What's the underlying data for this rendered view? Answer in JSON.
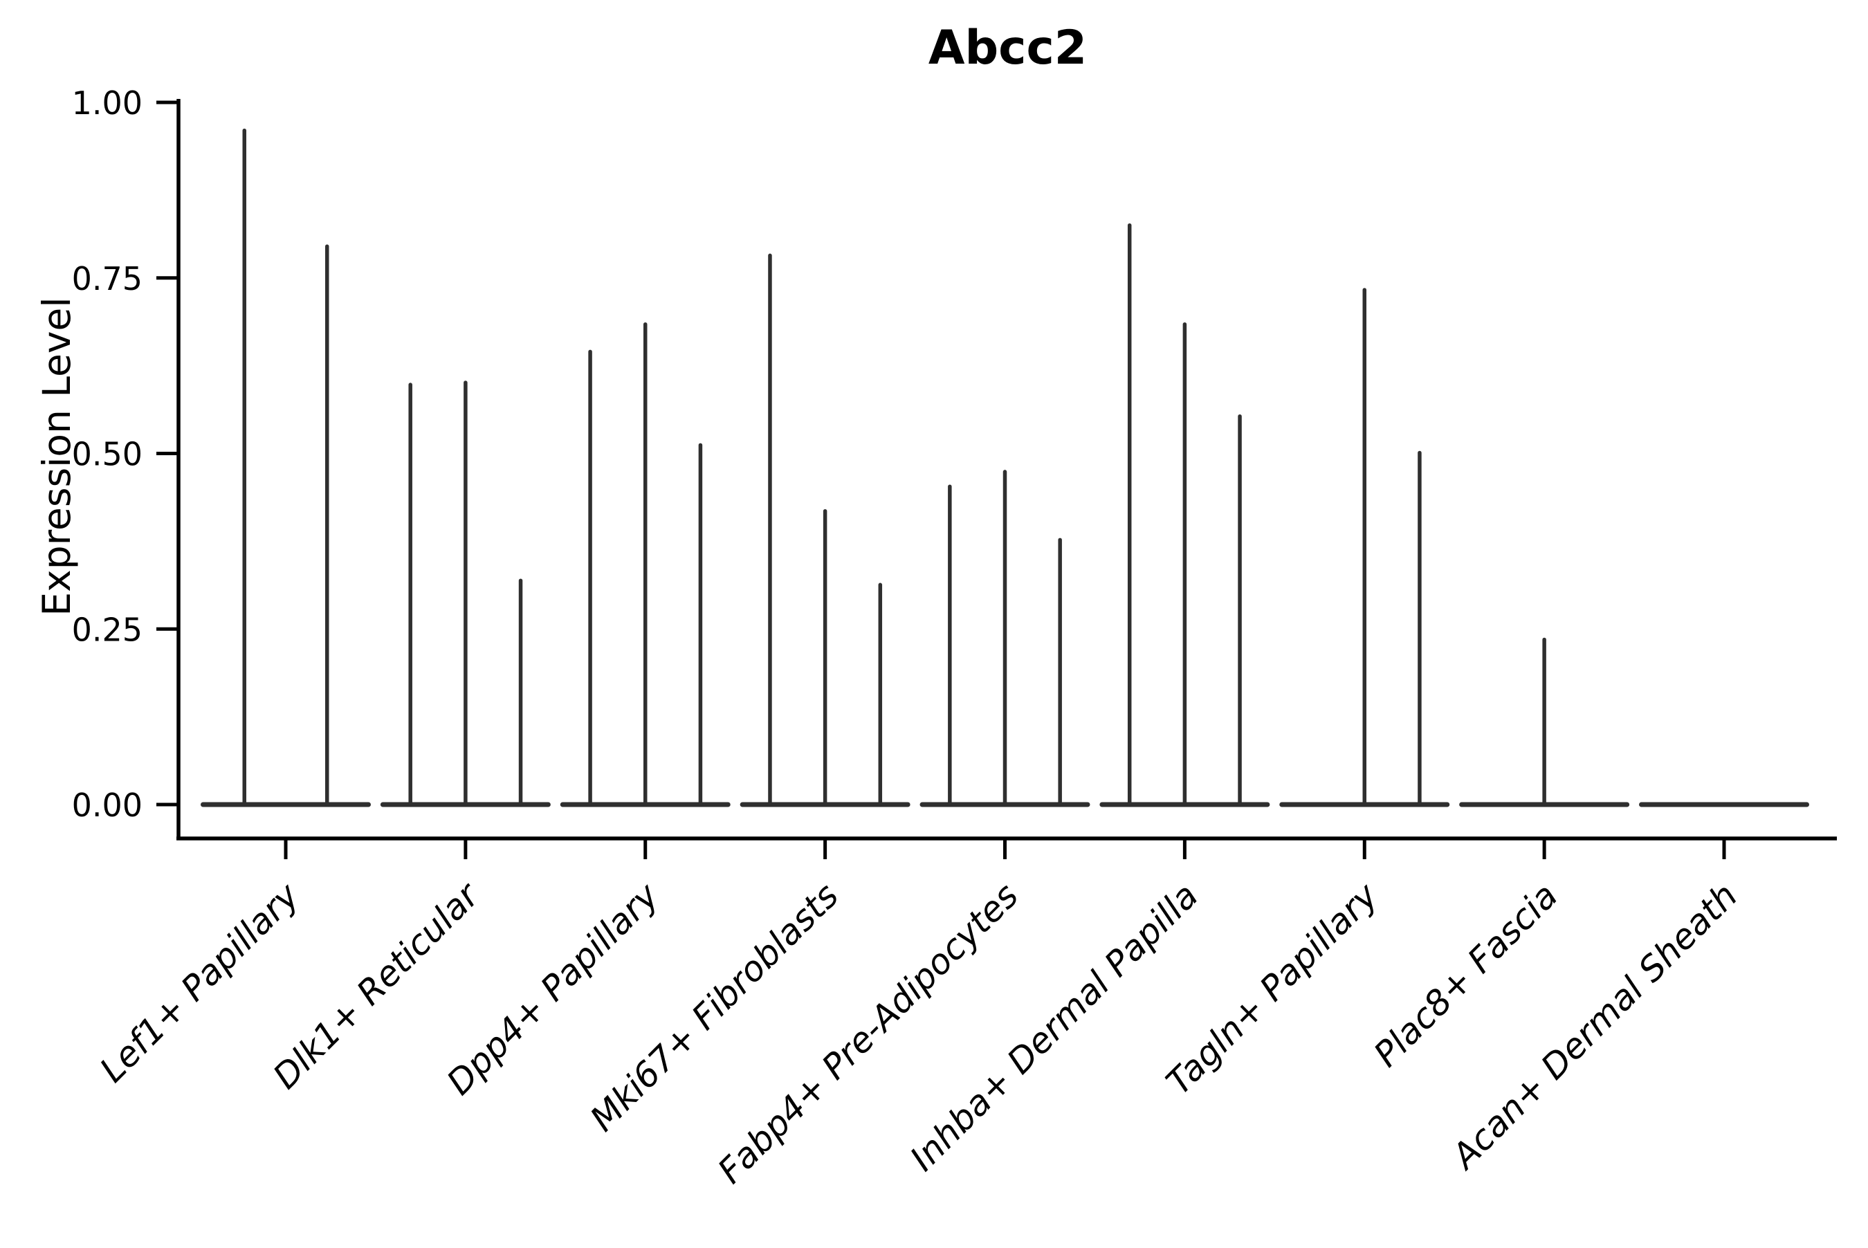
{
  "figure": {
    "background": "#ffffff"
  },
  "chart_data": {
    "type": "violin",
    "title": "Abcc2",
    "ylabel": "Expression Level",
    "xlabel": "",
    "ylim": [
      0,
      1
    ],
    "grid": false,
    "legend": "none",
    "ytick_values": [
      0,
      0.25,
      0.5,
      0.75,
      1.0
    ],
    "ytick_labels": [
      "0.00",
      "0.25",
      "0.50",
      "0.75",
      "1.00"
    ],
    "categories": [
      "Lef1+ Papillary",
      "Dlk1+ Reticular",
      "Dpp4+ Papillary",
      "Mki67+ Fibroblasts",
      "Fabp4+ Pre-Adipocytes",
      "Inhba+ Dermal Papilla",
      "Tagln+ Papillary",
      "Plac8+ Fascia",
      "Acan+ Dermal Sheath"
    ],
    "groups": [
      {
        "label": "Lef1+ Papillary",
        "violin_max": [
          0.96,
          0.795
        ]
      },
      {
        "label": "Dlk1+ Reticular",
        "violin_max": [
          0.598,
          0.601,
          0.319
        ]
      },
      {
        "label": "Dpp4+ Papillary",
        "violin_max": [
          0.645,
          0.684,
          0.512
        ]
      },
      {
        "label": "Mki67+ Fibroblasts",
        "violin_max": [
          0.782,
          0.418,
          0.313
        ]
      },
      {
        "label": "Fabp4+ Pre-Adipocytes",
        "violin_max": [
          0.453,
          0.474,
          0.377
        ]
      },
      {
        "label": "Inhba+ Dermal Papilla",
        "violin_max": [
          0.825,
          0.684,
          0.553
        ]
      },
      {
        "label": "Tagln+ Papillary",
        "violin_max": [
          0,
          0.733,
          0.501
        ]
      },
      {
        "label": "Plac8+ Fascia",
        "violin_max": [
          0,
          0.235,
          0
        ]
      },
      {
        "label": "Acan+ Dermal Sheath",
        "violin_max": [
          0,
          0,
          0
        ]
      }
    ],
    "colors": {
      "violin_stroke": "#2f2f2f",
      "axis": "#000000",
      "text": "#000000",
      "background": "#ffffff"
    }
  }
}
